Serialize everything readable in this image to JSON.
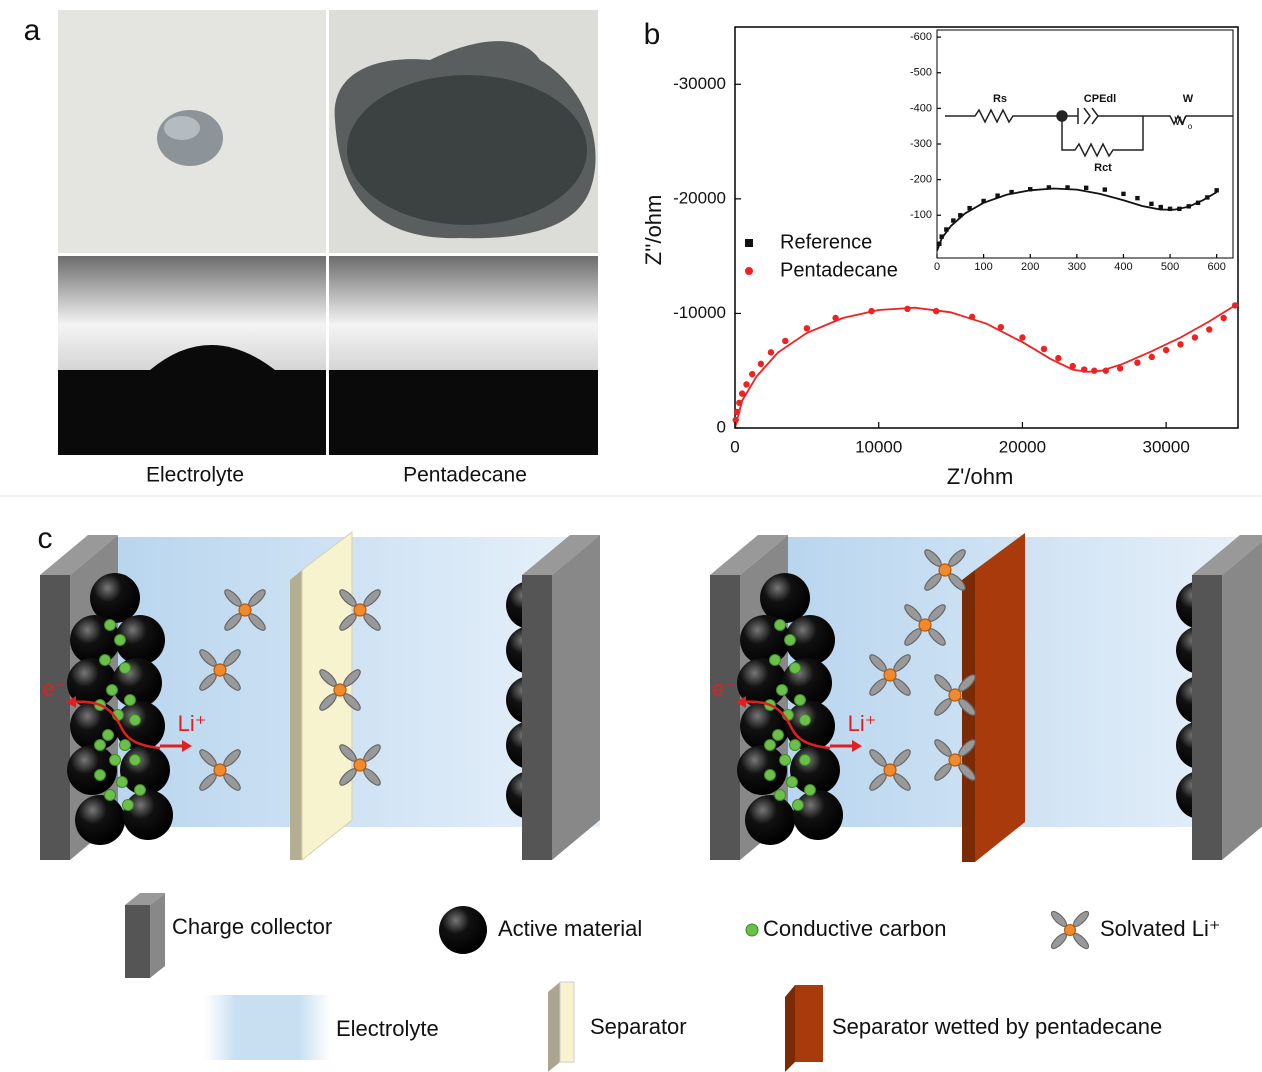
{
  "panel_labels": [
    "a",
    "b",
    "c"
  ],
  "photos": {
    "labels": [
      "Electrolyte",
      "Pentadecane"
    ]
  },
  "chart_data": [
    {
      "type": "scatter",
      "x_label": "Z'/ohm",
      "y_label": "Z''/ohm",
      "xlim": [
        0,
        35000
      ],
      "ylim": [
        0,
        -35000
      ],
      "xticks": [
        0,
        10000,
        20000,
        30000
      ],
      "yticks": [
        0,
        -10000,
        -20000,
        -30000
      ],
      "series": [
        {
          "name": "Pentadecane",
          "color": "#ee2222",
          "marker": "circle",
          "x": [
            50,
            150,
            300,
            500,
            800,
            1200,
            1800,
            2500,
            3500,
            5000,
            7000,
            9500,
            12000,
            14000,
            16500,
            18500,
            20000,
            21500,
            22500,
            23500,
            24300,
            25000,
            25800,
            26800,
            28000,
            29000,
            30000,
            31000,
            32000,
            33000,
            34000,
            34800
          ],
          "values": [
            -700,
            -1400,
            -2200,
            -3000,
            -3800,
            -4700,
            -5600,
            -6600,
            -7600,
            -8700,
            -9600,
            -10200,
            -10400,
            -10200,
            -9700,
            -8800,
            -7900,
            -6900,
            -6100,
            -5400,
            -5100,
            -5000,
            -5000,
            -5200,
            -5700,
            -6200,
            -6800,
            -7300,
            -7900,
            -8600,
            -9600,
            -10700
          ]
        },
        {
          "color": "#ee2222",
          "marker": "line",
          "x": [
            0,
            500,
            1500,
            3000,
            5000,
            7500,
            10000,
            12500,
            15000,
            17500,
            20000,
            22000,
            23500,
            24500,
            25500,
            27000,
            29000,
            31000,
            33000,
            34800
          ],
          "values": [
            0,
            -2400,
            -4500,
            -6600,
            -8300,
            -9600,
            -10300,
            -10500,
            -10100,
            -9100,
            -7500,
            -6000,
            -5100,
            -4900,
            -5000,
            -5600,
            -6700,
            -7900,
            -9300,
            -10700
          ]
        }
      ]
    },
    {
      "type": "scatter",
      "xlim": [
        0,
        635
      ],
      "ylim": [
        20,
        -620
      ],
      "xticks": [
        0,
        100,
        200,
        300,
        400,
        500,
        600
      ],
      "yticks": [
        -100,
        -200,
        -300,
        -400,
        -500,
        -600
      ],
      "series": [
        {
          "name": "Reference",
          "color": "#111111",
          "marker": "square",
          "x": [
            5,
            10,
            20,
            35,
            50,
            70,
            100,
            130,
            160,
            200,
            240,
            280,
            320,
            360,
            400,
            430,
            460,
            480,
            500,
            520,
            540,
            560,
            580,
            600
          ],
          "values": [
            -20,
            -40,
            -60,
            -85,
            -100,
            -120,
            -140,
            -155,
            -165,
            -173,
            -178,
            -178,
            -177,
            -172,
            -160,
            -148,
            -132,
            -123,
            -118,
            -118,
            -125,
            -135,
            -150,
            -170
          ]
        },
        {
          "color": "#111111",
          "marker": "line",
          "x": [
            0,
            10,
            30,
            60,
            100,
            150,
            200,
            250,
            300,
            350,
            400,
            440,
            480,
            510,
            540,
            570,
            600
          ],
          "values": [
            0,
            -35,
            -70,
            -105,
            -135,
            -158,
            -170,
            -175,
            -172,
            -160,
            -142,
            -126,
            -116,
            -116,
            -124,
            -142,
            -165
          ]
        }
      ]
    }
  ],
  "circuit": {
    "labels": [
      "Rs",
      "CPEdl",
      "Rct",
      "W"
    ],
    "warburg_symbol": {
      "main": "W",
      "sub": "o"
    }
  },
  "diagram": {
    "electron": "e⁻",
    "lithium": "Li⁺",
    "legend": [
      "Charge collector",
      "Active material",
      "Conductive carbon",
      "Solvated Li⁺",
      "Electrolyte",
      "Separator",
      "Separator wetted by pentadecane"
    ]
  }
}
